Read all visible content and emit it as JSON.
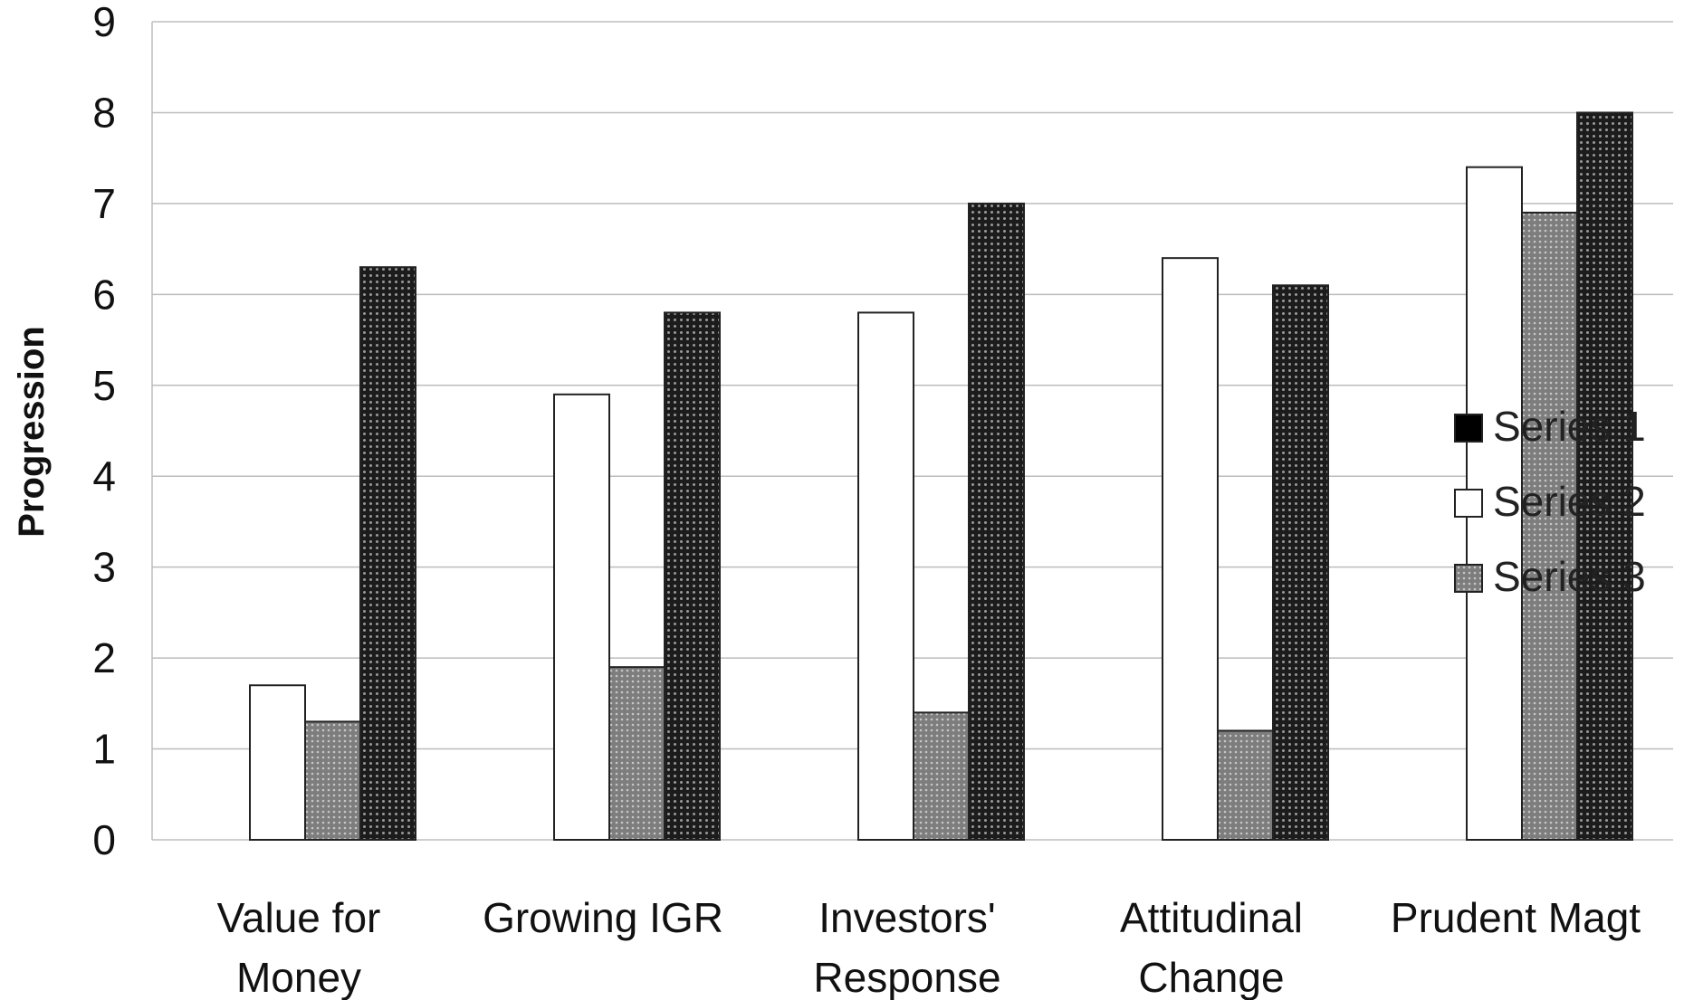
{
  "chart_data": {
    "type": "bar",
    "ylabel": "Progression",
    "ylim": [
      0,
      9
    ],
    "yticks": [
      0,
      1,
      2,
      3,
      4,
      5,
      6,
      7,
      8,
      9
    ],
    "grid": true,
    "legend_position": "right",
    "categories": [
      [
        "Value for",
        "Money"
      ],
      [
        "Growing IGR"
      ],
      [
        "Investors'",
        "Response"
      ],
      [
        "Attitudinal",
        "Change"
      ],
      [
        "Prudent Magt"
      ]
    ],
    "series": [
      {
        "name": "Series 1",
        "values": [
          6.3,
          5.8,
          7.0,
          6.1,
          8.0
        ],
        "color": "#2a2a2a",
        "pattern": "dots-dark"
      },
      {
        "name": "Series 2",
        "values": [
          1.7,
          4.9,
          5.8,
          6.4,
          7.4
        ],
        "color": "#ffffff",
        "pattern": "none"
      },
      {
        "name": "Series 3",
        "values": [
          1.3,
          1.9,
          1.4,
          1.2,
          6.9
        ],
        "color": "#9a9a9a",
        "pattern": "dots-light"
      }
    ],
    "bar_order": [
      "Series 2",
      "Series 3",
      "Series 1"
    ]
  }
}
